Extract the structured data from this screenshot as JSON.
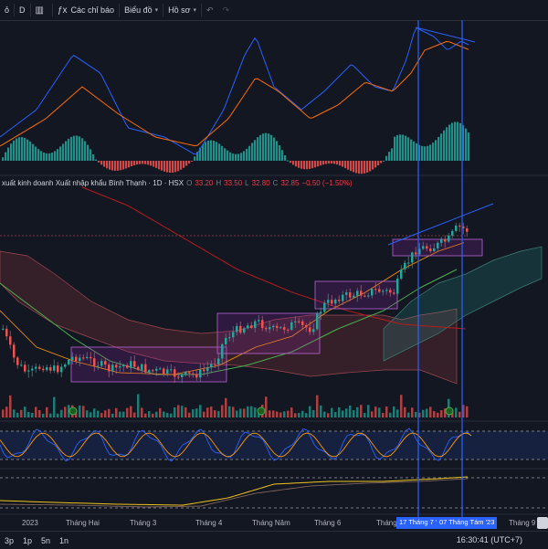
{
  "toolbar": {
    "symbol_fragment": "ỏ",
    "interval": "D",
    "indicators_label": "Các chỉ báo",
    "chart_type_label": "Biểu đồ",
    "profile_label": "Hồ sơ"
  },
  "legend": {
    "title": "xuất kinh doanh Xuất nhập khẩu Bình Thạnh · 1D · HSX",
    "open_label": "O",
    "open": "33.20",
    "high_label": "H",
    "high": "33.50",
    "low_label": "L",
    "low": "32.80",
    "close_label": "C",
    "close": "32.85",
    "change": "−0.50 (−1.50%)"
  },
  "xaxis": {
    "labels": [
      "2023",
      "Tháng Hai",
      "Tháng 3",
      "Tháng 4",
      "Tháng Năm",
      "Tháng 6",
      "Tháng",
      "Tháng 9"
    ],
    "highlight_1": "17 Tháng 7 '23",
    "highlight_2": "07 Tháng Tám '23"
  },
  "footer": {
    "timeframes": [
      "3p",
      "1p",
      "5n",
      "1n"
    ],
    "clock": "16:30:41 (UTC+7)"
  },
  "colors": {
    "bg": "#131722",
    "up": "#26a69a",
    "down": "#ef5350",
    "highlight": "#2962ff",
    "box": "#9c27b0",
    "macd": "#2962ff",
    "signal": "#ff6d00"
  },
  "icons": [
    "chevron-left-icon",
    "candle-icon",
    "indicators-icon",
    "layout-icon",
    "undo-icon",
    "redo-icon"
  ]
}
